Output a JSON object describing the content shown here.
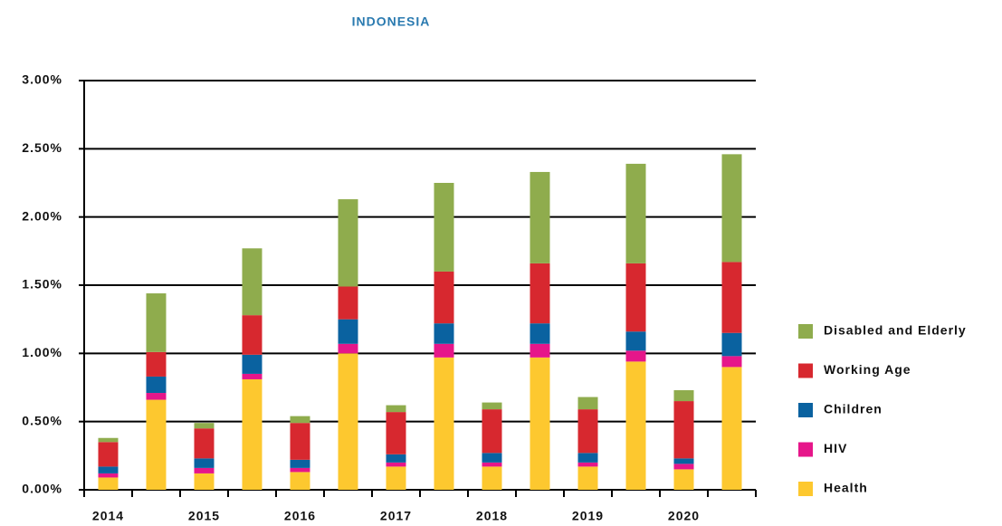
{
  "chart_data": {
    "type": "bar",
    "stacked": true,
    "title": "INDONESIA",
    "categories": [
      "2014",
      null,
      "2015",
      null,
      "2016",
      null,
      "2017",
      null,
      "2018",
      null,
      "2019",
      null,
      "2020",
      null
    ],
    "series": [
      {
        "name": "Health",
        "color": "#fdc82f",
        "values": [
          0.09,
          0.66,
          0.12,
          0.81,
          0.13,
          1.0,
          0.17,
          0.97,
          0.17,
          0.97,
          0.17,
          0.94,
          0.15,
          0.9
        ]
      },
      {
        "name": "HIV",
        "color": "#e6168a",
        "values": [
          0.03,
          0.05,
          0.04,
          0.04,
          0.03,
          0.07,
          0.03,
          0.1,
          0.03,
          0.1,
          0.03,
          0.08,
          0.04,
          0.08
        ]
      },
      {
        "name": "Children",
        "color": "#0a62a0",
        "values": [
          0.05,
          0.12,
          0.07,
          0.14,
          0.06,
          0.18,
          0.06,
          0.15,
          0.07,
          0.15,
          0.07,
          0.14,
          0.04,
          0.17
        ]
      },
      {
        "name": "Working Age",
        "color": "#d7282f",
        "values": [
          0.18,
          0.18,
          0.22,
          0.29,
          0.27,
          0.24,
          0.31,
          0.38,
          0.32,
          0.44,
          0.32,
          0.5,
          0.42,
          0.52
        ]
      },
      {
        "name": "Disabled and Elderly",
        "color": "#8fac4d",
        "values": [
          0.03,
          0.43,
          0.04,
          0.49,
          0.05,
          0.64,
          0.05,
          0.65,
          0.05,
          0.67,
          0.09,
          0.73,
          0.08,
          0.79
        ]
      }
    ],
    "ylim": [
      0,
      3
    ],
    "yticks": [
      {
        "value": 0,
        "label": "0.00%"
      },
      {
        "value": 0.5,
        "label": "0.50%"
      },
      {
        "value": 1,
        "label": "1.00%"
      },
      {
        "value": 1.5,
        "label": "1.50%"
      },
      {
        "value": 2,
        "label": "2.00%"
      },
      {
        "value": 2.5,
        "label": "2.50%"
      },
      {
        "value": 3,
        "label": "3.00%"
      }
    ],
    "grid": true,
    "legend": "right"
  }
}
